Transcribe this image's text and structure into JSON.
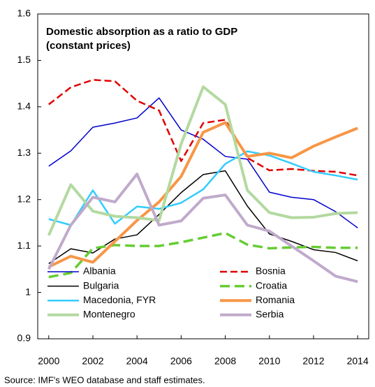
{
  "chart_data": {
    "type": "line",
    "title": "Domestic absorption as a ratio to GDP",
    "subtitle": "(constant prices)",
    "source": "Source: IMF's WEO database and staff estimates.",
    "x": [
      2000,
      2001,
      2002,
      2003,
      2004,
      2005,
      2006,
      2007,
      2008,
      2009,
      2010,
      2011,
      2012,
      2013,
      2014
    ],
    "xlim": [
      1999.5,
      2014.5
    ],
    "xticks": [
      2000,
      2002,
      2004,
      2006,
      2008,
      2010,
      2012,
      2014
    ],
    "ylim": [
      0.9,
      1.6
    ],
    "yticks": [
      0.9,
      1,
      1.1,
      1.2,
      1.3,
      1.4,
      1.5,
      1.6
    ],
    "grid": false,
    "legend": "bottom",
    "series": [
      {
        "name": "Albania",
        "color": "#0000cc",
        "width": 1.5,
        "dash": false,
        "values": [
          1.272,
          1.305,
          1.356,
          1.365,
          1.376,
          1.419,
          1.35,
          1.33,
          1.293,
          1.287,
          1.216,
          1.205,
          1.2,
          1.174,
          1.139
        ]
      },
      {
        "name": "Bosnia",
        "color": "#e00000",
        "width": 2.5,
        "dash": true,
        "values": [
          1.405,
          1.442,
          1.458,
          1.455,
          1.413,
          1.392,
          1.283,
          1.365,
          1.372,
          1.29,
          1.263,
          1.266,
          1.262,
          1.26,
          1.252
        ]
      },
      {
        "name": "Bulgaria",
        "color": "#000000",
        "width": 1.5,
        "dash": false,
        "values": [
          1.062,
          1.094,
          1.085,
          1.115,
          1.124,
          1.168,
          1.215,
          1.254,
          1.262,
          1.186,
          1.126,
          1.11,
          1.092,
          1.086,
          1.068
        ]
      },
      {
        "name": "Croatia",
        "color": "#66cc33",
        "width": 3.5,
        "dash": true,
        "values": [
          1.033,
          1.042,
          1.095,
          1.102,
          1.1,
          1.1,
          1.108,
          1.118,
          1.128,
          1.103,
          1.095,
          1.097,
          1.098,
          1.096,
          1.096
        ]
      },
      {
        "name": "Macedonia, FYR",
        "color": "#33ccff",
        "width": 2.5,
        "dash": false,
        "values": [
          1.158,
          1.145,
          1.22,
          1.148,
          1.185,
          1.18,
          1.193,
          1.222,
          1.277,
          1.304,
          1.295,
          1.278,
          1.26,
          1.252,
          1.243
        ]
      },
      {
        "name": "Romania",
        "color": "#f79646",
        "width": 4,
        "dash": false,
        "values": [
          1.055,
          1.078,
          1.065,
          1.11,
          1.155,
          1.195,
          1.25,
          1.345,
          1.366,
          1.293,
          1.3,
          1.29,
          1.315,
          1.335,
          1.354
        ]
      },
      {
        "name": "Montenegro",
        "color": "#b3d9a0",
        "width": 4,
        "dash": false,
        "values": [
          1.123,
          1.232,
          1.175,
          1.164,
          1.161,
          1.155,
          1.32,
          1.443,
          1.405,
          1.22,
          1.172,
          1.161,
          1.162,
          1.17,
          1.172
        ]
      },
      {
        "name": "Serbia",
        "color": "#c0aacb",
        "width": 4,
        "dash": false,
        "values": [
          1.05,
          1.145,
          1.205,
          1.195,
          1.255,
          1.145,
          1.154,
          1.203,
          1.21,
          1.145,
          1.132,
          1.1,
          1.068,
          1.035,
          1.023
        ]
      }
    ]
  }
}
